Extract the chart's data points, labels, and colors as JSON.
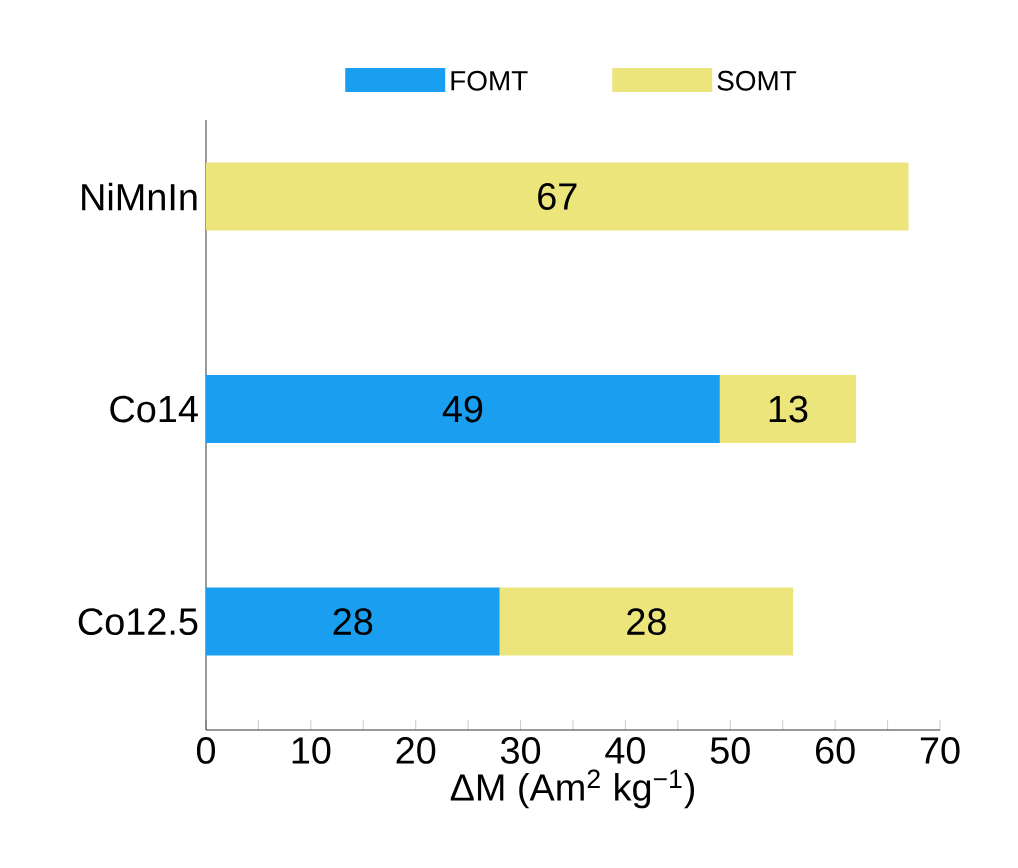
{
  "chart_data": {
    "type": "bar",
    "orientation": "horizontal",
    "stacked": true,
    "categories": [
      "NiMnIn",
      "Co14",
      "Co12.5"
    ],
    "series": [
      {
        "name": "FOMT",
        "color": "#1a9ff0",
        "values": [
          null,
          49,
          28
        ],
        "value_labels": [
          null,
          "49",
          "28"
        ]
      },
      {
        "name": "SOMT",
        "color": "#ece57c",
        "values": [
          67,
          13,
          28
        ],
        "value_labels": [
          "67",
          "13",
          "28"
        ]
      }
    ],
    "xlim": [
      0,
      70
    ],
    "xticks": [
      0,
      {
        "value": 5,
        "label": null
      },
      10,
      {
        "value": 15,
        "label": null
      },
      20,
      {
        "value": 25,
        "label": null
      },
      30,
      {
        "value": 35,
        "label": null
      },
      40,
      {
        "value": 45,
        "label": null
      },
      50,
      {
        "value": 55,
        "label": null
      },
      60,
      {
        "value": 65,
        "label": null
      },
      70
    ],
    "xlabel": "ΔM (Am$^{2}$ kg$^{−1}$)",
    "legend": "top",
    "grid": false
  }
}
